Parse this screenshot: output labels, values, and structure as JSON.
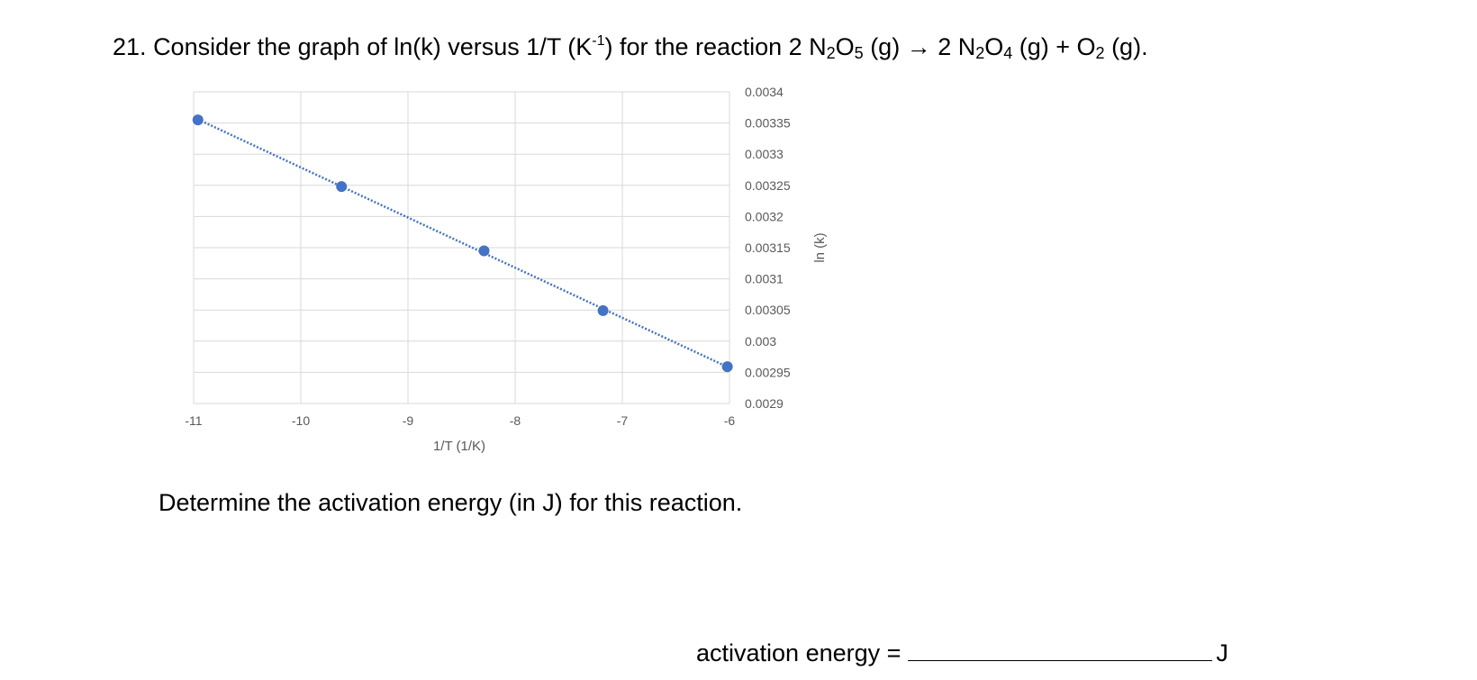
{
  "question": {
    "number": "21.",
    "text_part1": "Consider the graph of ln(k) versus 1/T (K",
    "sup": "-1",
    "text_part2": ") for the reaction 2 N",
    "sub_a1": "2",
    "text_part3": "O",
    "sub_a2": "5",
    "text_part4": " (g) → 2 N",
    "sub_b1": "2",
    "text_part5": "O",
    "sub_b2": "4",
    "text_part6": " (g) + O",
    "sub_c": "2",
    "text_part7": " (g)."
  },
  "chart_data": {
    "type": "scatter",
    "xlabel": "1/T (1/K)",
    "ylabel": "ln (k)",
    "xlim": [
      -11,
      -6
    ],
    "ylim": [
      0.0029,
      0.0034
    ],
    "x_ticks": [
      "-11",
      "-10",
      "-9",
      "-8",
      "-7",
      "-6"
    ],
    "y_ticks": [
      "0.0034",
      "0.00335",
      "0.0033",
      "0.00325",
      "0.0032",
      "0.00315",
      "0.0031",
      "0.00305",
      "0.003",
      "0.00295",
      "0.0029"
    ],
    "grid": true,
    "trendline": "dotted linear",
    "series": [
      {
        "x": [
          -10.96,
          -9.62,
          -8.29,
          -7.18,
          -6.02
        ],
        "y": [
          0.003355,
          0.003248,
          0.003145,
          0.003049,
          0.002959
        ]
      }
    ],
    "color": "#4472C4"
  },
  "prompt": "Determine the activation energy (in J) for this reaction.",
  "answer": {
    "label": "activation energy =",
    "unit": "J"
  }
}
